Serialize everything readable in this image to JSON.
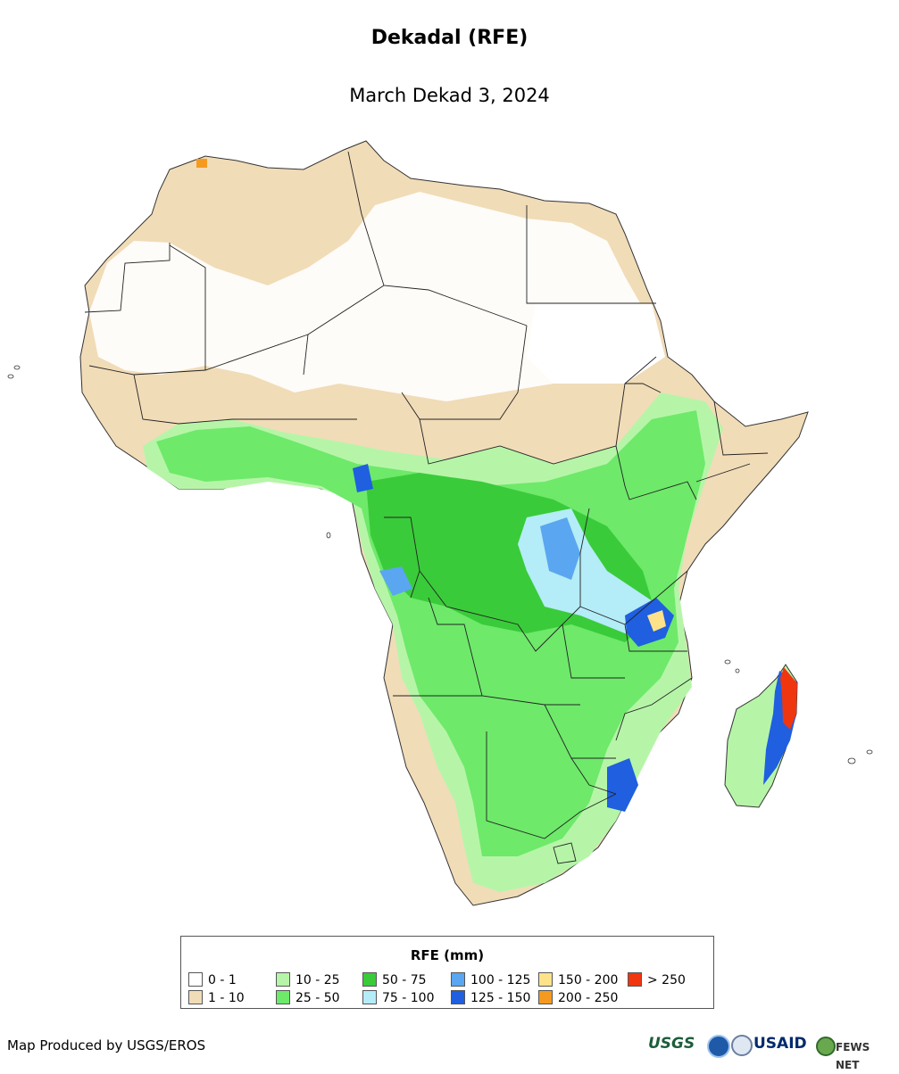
{
  "header": {
    "title": "Dekadal (RFE)",
    "subtitle": "March Dekad 3, 2024"
  },
  "legend": {
    "title": "RFE (mm)",
    "items": [
      {
        "label": "0 - 1",
        "color": "#ffffff"
      },
      {
        "label": "1 - 10",
        "color": "#f1dcb8"
      },
      {
        "label": "10 - 25",
        "color": "#b6f5a8"
      },
      {
        "label": "25 - 50",
        "color": "#6ee96a"
      },
      {
        "label": "50 - 75",
        "color": "#3acb3a"
      },
      {
        "label": "75 - 100",
        "color": "#b4ecf7"
      },
      {
        "label": "100 - 125",
        "color": "#5aa6f0"
      },
      {
        "label": "125 - 150",
        "color": "#1f5fe0"
      },
      {
        "label": "150 - 200",
        "color": "#fde28a"
      },
      {
        "label": "200 - 250",
        "color": "#f59a1f"
      },
      {
        "label": "> 250",
        "color": "#f0360f"
      }
    ]
  },
  "footer": {
    "credit": "Map Produced by USGS/EROS",
    "logos": [
      {
        "name": "usgs-logo",
        "text": "USGS"
      },
      {
        "name": "noaa-logo",
        "text": ""
      },
      {
        "name": "usaid-logo",
        "text": "USAID"
      },
      {
        "name": "fews-net-logo",
        "text": "FEWS NET"
      }
    ]
  }
}
